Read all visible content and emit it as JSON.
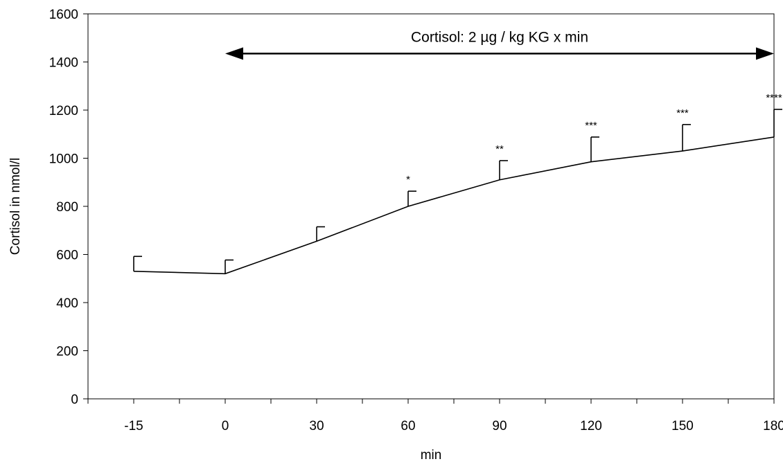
{
  "chart_data": {
    "type": "line",
    "xlabel": "min",
    "ylabel": "Cortisol in nmol/l",
    "ylim": [
      0,
      1600
    ],
    "y_ticks": [
      0,
      200,
      400,
      600,
      800,
      1000,
      1200,
      1400,
      1600
    ],
    "x_tick_labels": [
      "-15",
      "0",
      "30",
      "60",
      "90",
      "120",
      "150",
      "180"
    ],
    "grid": false,
    "series": [
      {
        "points": [
          {
            "x": "-15",
            "y": 530,
            "err": 62,
            "sig": ""
          },
          {
            "x": "0",
            "y": 520,
            "err": 57,
            "sig": ""
          },
          {
            "x": "30",
            "y": 655,
            "err": 60,
            "sig": ""
          },
          {
            "x": "60",
            "y": 800,
            "err": 63,
            "sig": "*"
          },
          {
            "x": "90",
            "y": 910,
            "err": 80,
            "sig": "**"
          },
          {
            "x": "120",
            "y": 985,
            "err": 103,
            "sig": "***"
          },
          {
            "x": "150",
            "y": 1030,
            "err": 110,
            "sig": "***"
          },
          {
            "x": "180",
            "y": 1088,
            "err": 115,
            "sig": "****"
          }
        ]
      }
    ],
    "annotation": {
      "text": "Cortisol: 2 µg / kg KG x min",
      "from": "0",
      "to": "180",
      "y": 1435
    }
  }
}
